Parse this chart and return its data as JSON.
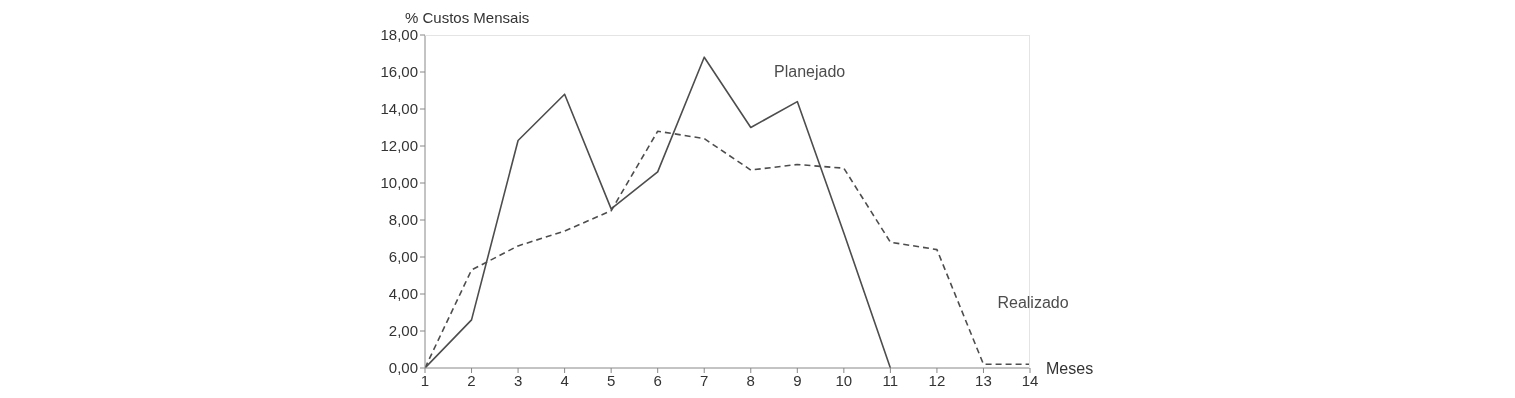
{
  "chart_data": {
    "type": "line",
    "xlabel": "Meses",
    "ylabel": "% Custos Mensais",
    "x": [
      1,
      2,
      3,
      4,
      5,
      6,
      7,
      8,
      9,
      10,
      11,
      12,
      13,
      14
    ],
    "series": [
      {
        "name": "Planejado",
        "color": "#4d4d4d",
        "line_style": "solid",
        "values": [
          0,
          2.6,
          12.3,
          14.8,
          8.6,
          10.6,
          16.8,
          13.0,
          14.4,
          7.3,
          0,
          null,
          null,
          null
        ]
      },
      {
        "name": "Realizado",
        "color": "#4d4d4d",
        "line_style": "dashed",
        "values": [
          0,
          5.3,
          6.6,
          7.4,
          8.5,
          12.8,
          12.4,
          10.7,
          11.0,
          10.8,
          6.8,
          6.4,
          0.2,
          0.2
        ]
      }
    ],
    "xlim": [
      1,
      14
    ],
    "xticks": [
      1,
      2,
      3,
      4,
      5,
      6,
      7,
      8,
      9,
      10,
      11,
      12,
      13,
      14
    ],
    "ylim": [
      0,
      18
    ],
    "yticks": [
      {
        "value": 0,
        "label": "0,00"
      },
      {
        "value": 2,
        "label": "2,00"
      },
      {
        "value": 4,
        "label": "4,00"
      },
      {
        "value": 6,
        "label": "6,00"
      },
      {
        "value": 8,
        "label": "8,00"
      },
      {
        "value": 10,
        "label": "10,00"
      },
      {
        "value": 12,
        "label": "12,00"
      },
      {
        "value": 14,
        "label": "14,00"
      },
      {
        "value": 16,
        "label": "16,00"
      },
      {
        "value": 18,
        "label": "18,00"
      }
    ],
    "grid": false,
    "legend": false,
    "marker": "none"
  }
}
